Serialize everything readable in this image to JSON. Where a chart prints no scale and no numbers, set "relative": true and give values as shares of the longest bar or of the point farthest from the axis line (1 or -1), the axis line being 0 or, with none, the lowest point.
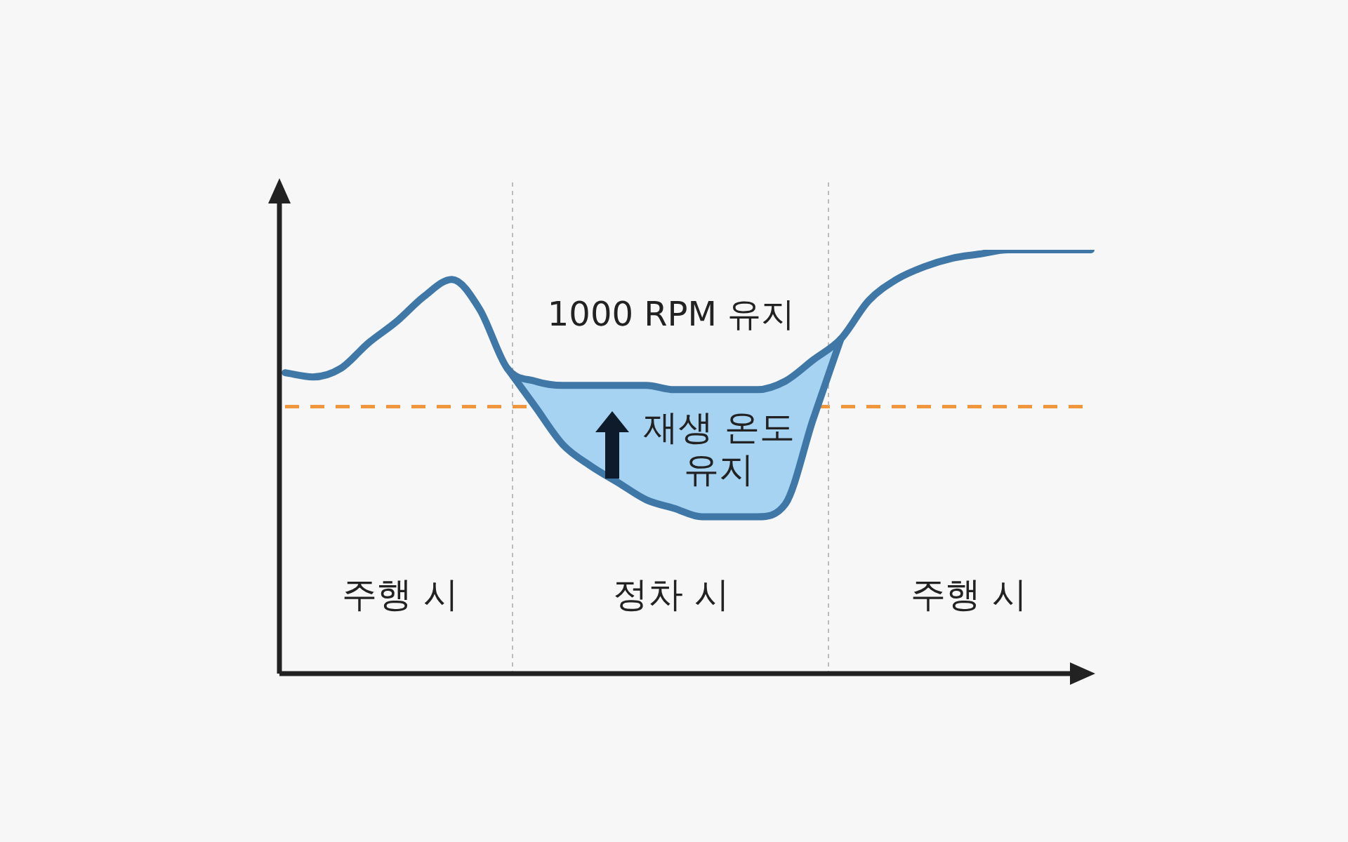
{
  "chart_data": {
    "type": "line",
    "relative": true,
    "categories": [
      null,
      null,
      null,
      null,
      null,
      null,
      null,
      null,
      null,
      null,
      null,
      null,
      null,
      null,
      null,
      null,
      null,
      null,
      null,
      null,
      null,
      null,
      null,
      null,
      null,
      null,
      null,
      null,
      null,
      null
    ],
    "series": [
      {
        "color": "#3f77a6",
        "values": [
          0.71,
          0.7,
          0.72,
          0.78,
          0.83,
          0.89,
          0.93,
          0.86,
          0.72,
          0.69,
          0.68,
          0.68,
          0.68,
          0.68,
          0.67,
          0.67,
          0.67,
          0.67,
          0.69,
          0.74,
          0.79,
          0.88,
          0.93,
          0.96,
          0.98,
          0.99,
          1.0,
          1.0,
          1.0,
          1.0
        ]
      },
      {
        "type": "line",
        "color": "#3f77a6",
        "values": [
          null,
          null,
          null,
          null,
          null,
          null,
          null,
          null,
          0.72,
          0.63,
          0.54,
          0.49,
          0.45,
          0.41,
          0.39,
          0.37,
          0.37,
          0.37,
          0.4,
          0.6,
          0.79,
          null,
          null,
          null,
          null,
          null,
          null,
          null,
          null,
          null
        ]
      }
    ],
    "ref_lines": [
      {
        "axis": "y",
        "value": 0.63,
        "color": "#f0963c",
        "line_style": "dashed"
      }
    ],
    "annotations": [
      "1000 RPM 유지",
      "재생 온도 유지",
      "주행 시",
      "정차 시",
      "주행 시"
    ],
    "line_style": "solid",
    "marker": "none"
  }
}
